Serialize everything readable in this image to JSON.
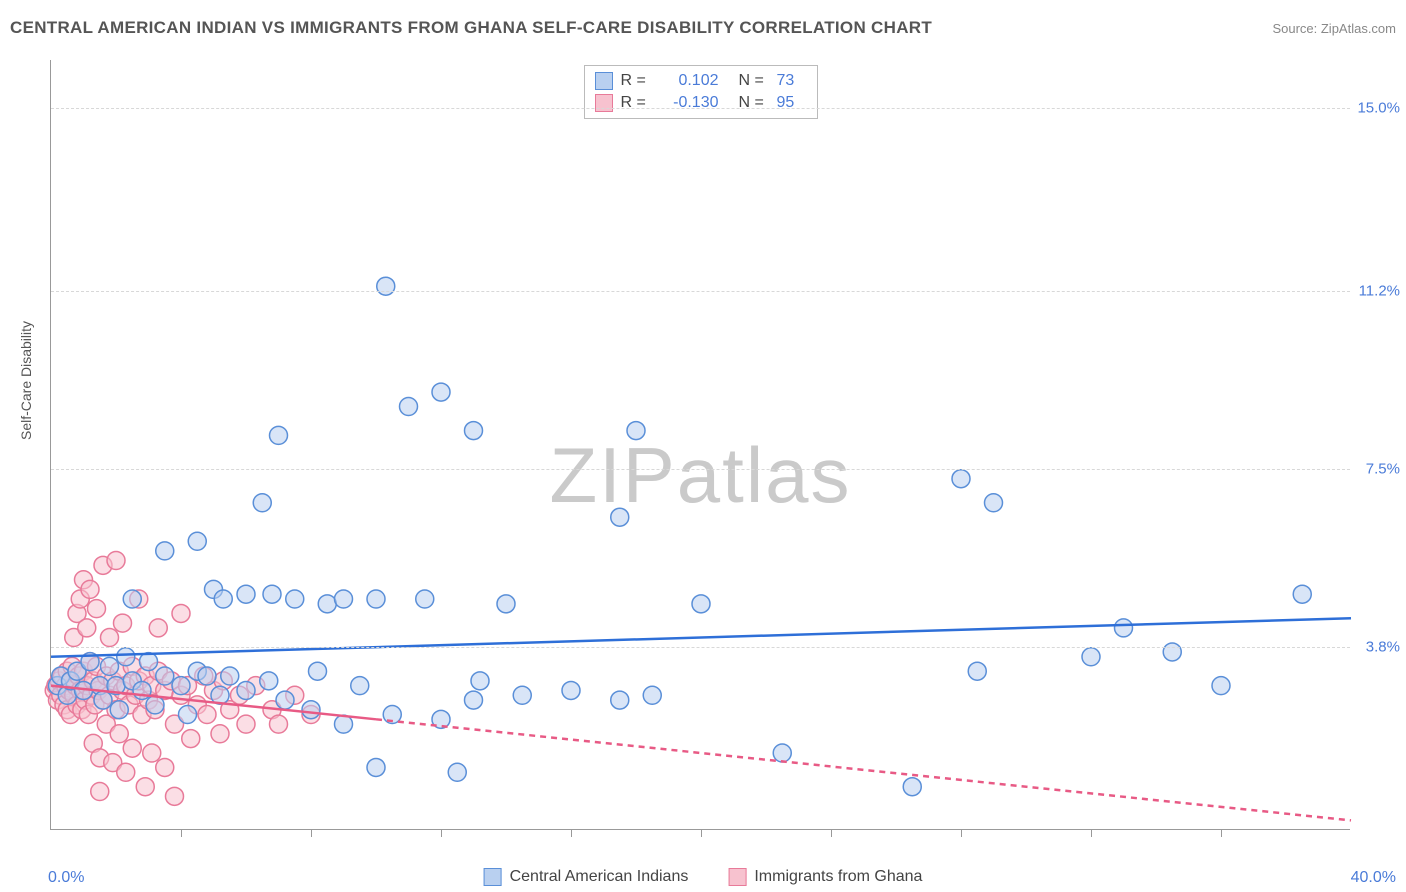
{
  "header": {
    "title": "CENTRAL AMERICAN INDIAN VS IMMIGRANTS FROM GHANA SELF-CARE DISABILITY CORRELATION CHART",
    "source_prefix": "Source: ",
    "source_name": "ZipAtlas.com"
  },
  "watermark": {
    "zip": "ZIP",
    "atlas": "atlas"
  },
  "axes": {
    "y_label": "Self-Care Disability",
    "x_min_label": "0.0%",
    "x_max_label": "40.0%",
    "xlim": [
      0,
      40
    ],
    "ylim": [
      0,
      16
    ],
    "y_ticks": [
      {
        "value": 3.8,
        "label": "3.8%"
      },
      {
        "value": 7.5,
        "label": "7.5%"
      },
      {
        "value": 11.2,
        "label": "11.2%"
      },
      {
        "value": 15.0,
        "label": "15.0%"
      }
    ],
    "x_tick_positions": [
      4,
      8,
      12,
      16,
      20,
      24,
      28,
      32,
      36
    ],
    "grid_color": "#d8d8d8",
    "axis_color": "#999999"
  },
  "legend_top": {
    "rows": [
      {
        "color_fill": "#b9d0f0",
        "color_stroke": "#5a8fd8",
        "r_label": "R =",
        "r_value": "0.102",
        "n_label": "N =",
        "n_value": "73"
      },
      {
        "color_fill": "#f7c2cf",
        "color_stroke": "#e87a99",
        "r_label": "R =",
        "r_value": "-0.130",
        "n_label": "N =",
        "n_value": "95"
      }
    ]
  },
  "legend_bottom": {
    "items": [
      {
        "color_fill": "#b9d0f0",
        "color_stroke": "#5a8fd8",
        "label": "Central American Indians"
      },
      {
        "color_fill": "#f7c2cf",
        "color_stroke": "#e87a99",
        "label": "Immigrants from Ghana"
      }
    ]
  },
  "series": {
    "blue": {
      "fill": "#b9d0f0",
      "stroke": "#5a8fd8",
      "fill_opacity": 0.55,
      "radius": 9,
      "trend": {
        "x1": 0,
        "y1": 3.6,
        "x2": 40,
        "y2": 4.4,
        "solid_until_x": 40,
        "color": "#2e6fd8",
        "width": 2.5
      },
      "points": [
        [
          0.2,
          3.0
        ],
        [
          0.3,
          3.2
        ],
        [
          0.5,
          2.8
        ],
        [
          0.6,
          3.1
        ],
        [
          0.8,
          3.3
        ],
        [
          1.0,
          2.9
        ],
        [
          1.2,
          3.5
        ],
        [
          1.5,
          3.0
        ],
        [
          1.6,
          2.7
        ],
        [
          1.8,
          3.4
        ],
        [
          2.0,
          3.0
        ],
        [
          2.1,
          2.5
        ],
        [
          2.3,
          3.6
        ],
        [
          2.5,
          3.1
        ],
        [
          2.5,
          4.8
        ],
        [
          2.8,
          2.9
        ],
        [
          3.0,
          3.5
        ],
        [
          3.2,
          2.6
        ],
        [
          3.5,
          3.2
        ],
        [
          3.5,
          5.8
        ],
        [
          4.0,
          3.0
        ],
        [
          4.2,
          2.4
        ],
        [
          4.5,
          6.0
        ],
        [
          4.5,
          3.3
        ],
        [
          5.0,
          5.0
        ],
        [
          5.2,
          2.8
        ],
        [
          5.3,
          4.8
        ],
        [
          5.5,
          3.2
        ],
        [
          6.0,
          2.9
        ],
        [
          6.0,
          4.9
        ],
        [
          6.5,
          6.8
        ],
        [
          6.7,
          3.1
        ],
        [
          7.0,
          8.2
        ],
        [
          7.2,
          2.7
        ],
        [
          7.5,
          4.8
        ],
        [
          8.0,
          2.5
        ],
        [
          8.2,
          3.3
        ],
        [
          8.5,
          4.7
        ],
        [
          9.0,
          2.2
        ],
        [
          9.5,
          3.0
        ],
        [
          10.0,
          4.8
        ],
        [
          10.0,
          1.3
        ],
        [
          10.3,
          11.3
        ],
        [
          10.5,
          2.4
        ],
        [
          11.0,
          8.8
        ],
        [
          11.5,
          4.8
        ],
        [
          12.0,
          2.3
        ],
        [
          12.5,
          1.2
        ],
        [
          13.0,
          8.3
        ],
        [
          13.0,
          2.7
        ],
        [
          13.2,
          3.1
        ],
        [
          14.0,
          4.7
        ],
        [
          14.5,
          2.8
        ],
        [
          16.0,
          2.9
        ],
        [
          17.5,
          2.7
        ],
        [
          17.5,
          6.5
        ],
        [
          18.0,
          8.3
        ],
        [
          18.5,
          2.8
        ],
        [
          20.0,
          4.7
        ],
        [
          22.5,
          1.6
        ],
        [
          26.5,
          0.9
        ],
        [
          28.0,
          7.3
        ],
        [
          28.5,
          3.3
        ],
        [
          29.0,
          6.8
        ],
        [
          32.0,
          3.6
        ],
        [
          33.0,
          4.2
        ],
        [
          34.5,
          3.7
        ],
        [
          36.0,
          3.0
        ],
        [
          38.5,
          4.9
        ],
        [
          12.0,
          9.1
        ],
        [
          9.0,
          4.8
        ],
        [
          6.8,
          4.9
        ],
        [
          4.8,
          3.2
        ]
      ]
    },
    "pink": {
      "fill": "#f7c2cf",
      "stroke": "#e87a99",
      "fill_opacity": 0.55,
      "radius": 9,
      "trend": {
        "x1": 0,
        "y1": 3.0,
        "x2": 40,
        "y2": 0.2,
        "solid_until_x": 10,
        "color": "#e85a85",
        "width": 2.5,
        "dash": "6,5"
      },
      "points": [
        [
          0.1,
          2.9
        ],
        [
          0.15,
          3.0
        ],
        [
          0.2,
          2.7
        ],
        [
          0.25,
          3.1
        ],
        [
          0.3,
          2.8
        ],
        [
          0.35,
          3.2
        ],
        [
          0.4,
          2.6
        ],
        [
          0.45,
          3.0
        ],
        [
          0.5,
          3.3
        ],
        [
          0.5,
          2.5
        ],
        [
          0.55,
          2.9
        ],
        [
          0.6,
          3.1
        ],
        [
          0.6,
          2.4
        ],
        [
          0.65,
          3.4
        ],
        [
          0.7,
          2.8
        ],
        [
          0.7,
          4.0
        ],
        [
          0.75,
          3.0
        ],
        [
          0.8,
          2.6
        ],
        [
          0.8,
          4.5
        ],
        [
          0.85,
          3.2
        ],
        [
          0.9,
          2.9
        ],
        [
          0.9,
          4.8
        ],
        [
          0.95,
          2.5
        ],
        [
          1.0,
          3.3
        ],
        [
          1.0,
          5.2
        ],
        [
          1.05,
          2.7
        ],
        [
          1.1,
          3.0
        ],
        [
          1.1,
          4.2
        ],
        [
          1.15,
          2.4
        ],
        [
          1.2,
          3.5
        ],
        [
          1.2,
          5.0
        ],
        [
          1.25,
          2.8
        ],
        [
          1.3,
          3.1
        ],
        [
          1.3,
          1.8
        ],
        [
          1.35,
          2.6
        ],
        [
          1.4,
          3.4
        ],
        [
          1.4,
          4.6
        ],
        [
          1.45,
          2.9
        ],
        [
          1.5,
          3.0
        ],
        [
          1.5,
          1.5
        ],
        [
          1.6,
          2.7
        ],
        [
          1.6,
          5.5
        ],
        [
          1.7,
          3.2
        ],
        [
          1.7,
          2.2
        ],
        [
          1.8,
          2.8
        ],
        [
          1.8,
          4.0
        ],
        [
          1.9,
          3.1
        ],
        [
          1.9,
          1.4
        ],
        [
          2.0,
          2.5
        ],
        [
          2.0,
          5.6
        ],
        [
          2.1,
          3.3
        ],
        [
          2.1,
          2.0
        ],
        [
          2.2,
          2.9
        ],
        [
          2.2,
          4.3
        ],
        [
          2.3,
          3.0
        ],
        [
          2.3,
          1.2
        ],
        [
          2.4,
          2.6
        ],
        [
          2.5,
          3.4
        ],
        [
          2.5,
          1.7
        ],
        [
          2.6,
          2.8
        ],
        [
          2.7,
          3.1
        ],
        [
          2.7,
          4.8
        ],
        [
          2.8,
          2.4
        ],
        [
          2.9,
          3.2
        ],
        [
          2.9,
          0.9
        ],
        [
          3.0,
          2.7
        ],
        [
          3.1,
          3.0
        ],
        [
          3.1,
          1.6
        ],
        [
          3.2,
          2.5
        ],
        [
          3.3,
          3.3
        ],
        [
          3.3,
          4.2
        ],
        [
          3.5,
          2.9
        ],
        [
          3.5,
          1.3
        ],
        [
          3.7,
          3.1
        ],
        [
          3.8,
          2.2
        ],
        [
          4.0,
          2.8
        ],
        [
          4.0,
          4.5
        ],
        [
          4.2,
          3.0
        ],
        [
          4.3,
          1.9
        ],
        [
          4.5,
          2.6
        ],
        [
          4.7,
          3.2
        ],
        [
          4.8,
          2.4
        ],
        [
          5.0,
          2.9
        ],
        [
          5.2,
          2.0
        ],
        [
          5.3,
          3.1
        ],
        [
          5.5,
          2.5
        ],
        [
          5.8,
          2.8
        ],
        [
          6.0,
          2.2
        ],
        [
          6.3,
          3.0
        ],
        [
          6.8,
          2.5
        ],
        [
          7.0,
          2.2
        ],
        [
          7.5,
          2.8
        ],
        [
          8.0,
          2.4
        ],
        [
          3.8,
          0.7
        ],
        [
          1.5,
          0.8
        ]
      ]
    }
  }
}
